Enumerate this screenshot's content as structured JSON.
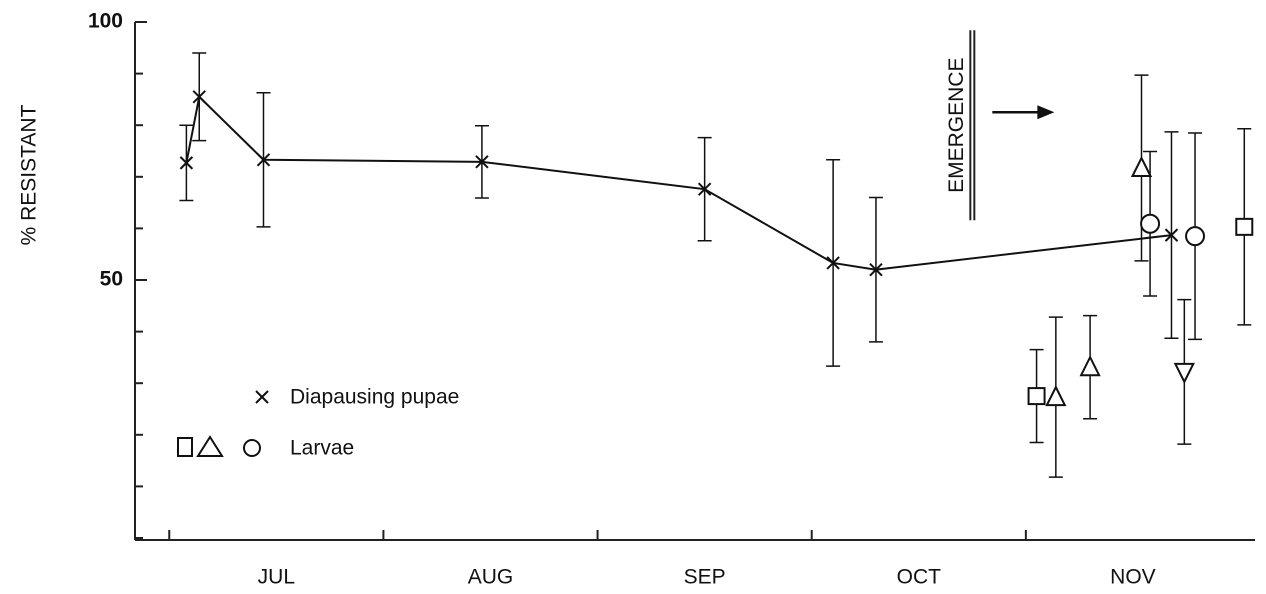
{
  "chart_data": {
    "type": "scatter",
    "ylabel": "% RESISTANT",
    "xlim": [
      -0.16,
      5.07
    ],
    "ylim": [
      0,
      100
    ],
    "yticks": [
      50,
      100
    ],
    "yminor_ticks": [
      0,
      10,
      20,
      30,
      40,
      60,
      70,
      80,
      90
    ],
    "xticks": [
      {
        "value": 0.5,
        "label": "JUL"
      },
      {
        "value": 1.5,
        "label": "AUG"
      },
      {
        "value": 2.5,
        "label": "SEP"
      },
      {
        "value": 3.5,
        "label": "OCT"
      },
      {
        "value": 4.5,
        "label": "NOV"
      }
    ],
    "xminor_ticks": [
      0,
      1,
      2,
      3,
      4
    ],
    "legend": "lower-left",
    "annotations": [
      {
        "text": "EMERGENCE",
        "x": 3.68,
        "y": 80
      }
    ],
    "series": [
      {
        "name": "Diapausing pupae",
        "color": "#111",
        "marker": "x",
        "line": true,
        "x": [
          0.08,
          0.14,
          0.44,
          1.46,
          2.5,
          3.1,
          3.3,
          4.68
        ],
        "values": [
          72.7,
          85.5,
          73.3,
          72.9,
          67.6,
          53.3,
          52,
          58.7
        ],
        "errors": [
          7.3,
          8.5,
          13,
          7,
          10,
          20,
          14,
          20
        ]
      },
      {
        "name": "Larvae",
        "color": "#111",
        "markers": [
          "square",
          "triangle",
          "triangle",
          "triangle",
          "circle",
          "triangle-down",
          "circle",
          "square"
        ],
        "line": false,
        "x": [
          4.05,
          4.14,
          4.3,
          4.54,
          4.58,
          4.74,
          4.79,
          5.02
        ],
        "values": [
          27.5,
          27.3,
          33.1,
          71.7,
          60.9,
          32.2,
          58.5,
          60.3
        ],
        "errors": [
          9,
          15.5,
          10,
          18,
          14,
          14,
          20,
          19
        ]
      }
    ]
  }
}
